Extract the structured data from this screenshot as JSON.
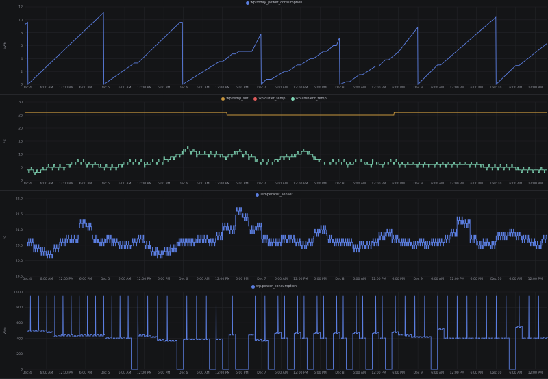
{
  "x_ticks": [
    {
      "h": 0,
      "label": "Dec 4"
    },
    {
      "h": 6,
      "label": "6:00 AM"
    },
    {
      "h": 12,
      "label": "12:00 PM"
    },
    {
      "h": 18,
      "label": "6:00 PM"
    },
    {
      "h": 24,
      "label": "Dec 5"
    },
    {
      "h": 30,
      "label": "6:00 AM"
    },
    {
      "h": 36,
      "label": "12:00 PM"
    },
    {
      "h": 42,
      "label": "6:00 PM"
    },
    {
      "h": 48,
      "label": "Dec 6"
    },
    {
      "h": 54,
      "label": "6:00 AM"
    },
    {
      "h": 60,
      "label": "12:00 PM"
    },
    {
      "h": 66,
      "label": "6:00 PM"
    },
    {
      "h": 72,
      "label": "Dec 7"
    },
    {
      "h": 78,
      "label": "6:00 AM"
    },
    {
      "h": 84,
      "label": "12:00 PM"
    },
    {
      "h": 90,
      "label": "6:00 PM"
    },
    {
      "h": 96,
      "label": "Dec 8"
    },
    {
      "h": 102,
      "label": "6:00 AM"
    },
    {
      "h": 108,
      "label": "12:00 PM"
    },
    {
      "h": 114,
      "label": "6:00 PM"
    },
    {
      "h": 120,
      "label": "Dec 9"
    },
    {
      "h": 126,
      "label": "6:00 AM"
    },
    {
      "h": 132,
      "label": "12:00 PM"
    },
    {
      "h": 138,
      "label": "6:00 PM"
    },
    {
      "h": 144,
      "label": "Dec 10"
    },
    {
      "h": 150,
      "label": "6:00 AM"
    },
    {
      "h": 156,
      "label": "12:00 PM"
    }
  ],
  "chart_data": [
    {
      "type": "line",
      "title": "",
      "ylabel": "kWh",
      "xlim": [
        -0.5,
        159.5
      ],
      "ylim": [
        0,
        12
      ],
      "yticks": [
        {
          "v": 0,
          "label": "0"
        },
        {
          "v": 2,
          "label": "2"
        },
        {
          "v": 4,
          "label": "4"
        },
        {
          "v": 6,
          "label": "6"
        },
        {
          "v": 8,
          "label": "8"
        },
        {
          "v": 10,
          "label": "10"
        },
        {
          "v": 12,
          "label": "12"
        }
      ],
      "series": [
        {
          "name": "wp.today_power_consumption",
          "color": "#5b7ee0",
          "style": "line",
          "points": [
            [
              -0.5,
              9.3
            ],
            [
              0.2,
              9.6
            ],
            [
              0.3,
              0
            ],
            [
              23.5,
              11.1
            ],
            [
              23.6,
              0
            ],
            [
              33,
              3.3
            ],
            [
              34,
              3.3
            ],
            [
              47,
              9.6
            ],
            [
              47.7,
              9.6
            ],
            [
              47.8,
              0
            ],
            [
              59,
              3.5
            ],
            [
              60,
              3.5
            ],
            [
              63,
              4.7
            ],
            [
              64,
              4.7
            ],
            [
              65,
              5.1
            ],
            [
              69,
              5.1
            ],
            [
              71.8,
              7.8
            ],
            [
              71.9,
              0
            ],
            [
              73.5,
              0.8
            ],
            [
              75,
              0.8
            ],
            [
              79,
              2.0
            ],
            [
              80,
              2.0
            ],
            [
              83,
              3.0
            ],
            [
              84,
              3.0
            ],
            [
              87,
              4.0
            ],
            [
              88,
              4.0
            ],
            [
              91,
              5.1
            ],
            [
              92,
              5.1
            ],
            [
              94,
              6.0
            ],
            [
              95,
              6.0
            ],
            [
              95.9,
              7.2
            ],
            [
              96,
              0
            ],
            [
              98,
              0.4
            ],
            [
              99,
              0.4
            ],
            [
              102,
              1.5
            ],
            [
              103,
              1.5
            ],
            [
              107,
              2.8
            ],
            [
              108,
              2.8
            ],
            [
              110,
              3.8
            ],
            [
              111,
              3.8
            ],
            [
              114,
              5.0
            ],
            [
              119.9,
              8.8
            ],
            [
              120,
              0
            ],
            [
              126,
              3.0
            ],
            [
              127,
              3.0
            ],
            [
              143.9,
              10.4
            ],
            [
              144,
              0
            ],
            [
              150,
              2.9
            ],
            [
              151,
              2.9
            ],
            [
              159.5,
              6.3
            ]
          ]
        }
      ]
    },
    {
      "type": "line",
      "ylabel": "°C",
      "xlim": [
        -0.5,
        159.5
      ],
      "ylim": [
        0,
        30
      ],
      "yticks": [
        {
          "v": 0,
          "label": "0"
        },
        {
          "v": 5,
          "label": "5"
        },
        {
          "v": 10,
          "label": "10"
        },
        {
          "v": 15,
          "label": "15"
        },
        {
          "v": 20,
          "label": "20"
        },
        {
          "v": 25,
          "label": "25"
        },
        {
          "v": 30,
          "label": "30"
        }
      ],
      "series": [
        {
          "name": "wp.temp_set",
          "color": "#c8963e",
          "style": "line",
          "points": [
            [
              -0.5,
              26
            ],
            [
              61.3,
              26
            ],
            [
              61.4,
              25
            ],
            [
              112.6,
              25
            ],
            [
              112.7,
              26
            ],
            [
              159.5,
              26
            ]
          ]
        },
        {
          "name": "wp.outlet_temp",
          "color": "#e05a5a",
          "style": "hidden",
          "points": []
        },
        {
          "name": "wp.ambient_temp",
          "color": "#7fd6b5",
          "style": "step2h",
          "values": [
            4,
            3,
            4,
            5,
            5,
            5,
            6,
            7,
            7,
            6,
            6,
            5,
            5,
            5,
            6,
            7,
            7,
            7,
            6,
            7,
            7,
            8,
            9,
            10,
            12,
            11,
            10,
            10,
            10,
            10,
            9,
            10,
            11,
            10,
            9,
            7,
            7,
            7,
            8,
            9,
            9,
            10,
            11,
            10,
            8,
            7,
            7,
            7,
            7,
            6,
            7,
            7,
            6,
            7,
            6,
            7,
            7,
            6,
            6,
            6,
            6,
            6,
            6,
            6,
            6,
            6,
            6,
            6,
            6,
            6,
            5,
            5,
            5,
            5,
            5,
            4,
            4,
            4,
            4,
            4
          ]
        }
      ]
    },
    {
      "type": "line",
      "ylabel": "°C",
      "xlim": [
        -0.5,
        159.5
      ],
      "ylim": [
        19.5,
        22.0
      ],
      "yticks": [
        {
          "v": 19.5,
          "label": "19.5"
        },
        {
          "v": 20.0,
          "label": "20.0"
        },
        {
          "v": 20.5,
          "label": "20.5"
        },
        {
          "v": 21.0,
          "label": "21.0"
        },
        {
          "v": 21.5,
          "label": "21.5"
        },
        {
          "v": 22.0,
          "label": "22.0"
        }
      ],
      "series": [
        {
          "name": "Temperatur_sensor",
          "color": "#5b7ee0",
          "style": "jitter2h",
          "jitter": 0.12,
          "values": [
            20.6,
            20.4,
            20.3,
            20.2,
            20.4,
            20.6,
            20.7,
            20.7,
            21.2,
            21.1,
            20.7,
            20.6,
            20.7,
            20.6,
            20.5,
            20.5,
            20.6,
            20.7,
            20.5,
            20.3,
            20.2,
            20.3,
            20.4,
            20.6,
            20.6,
            20.6,
            20.7,
            20.7,
            20.6,
            20.8,
            21.1,
            21.0,
            21.6,
            21.4,
            21.0,
            21.1,
            20.7,
            20.6,
            20.6,
            20.7,
            20.7,
            20.6,
            20.5,
            20.6,
            20.9,
            21.0,
            20.7,
            20.6,
            20.6,
            20.6,
            20.4,
            20.5,
            20.5,
            20.6,
            20.8,
            20.9,
            20.7,
            20.6,
            20.6,
            20.5,
            20.6,
            20.5,
            20.6,
            20.6,
            20.7,
            20.9,
            21.3,
            21.2,
            20.7,
            20.5,
            20.6,
            20.5,
            20.8,
            20.8,
            20.9,
            20.8,
            20.7,
            20.6,
            20.5,
            20.7
          ]
        }
      ]
    },
    {
      "type": "line",
      "ylabel": "Watt",
      "xlim": [
        -0.5,
        159.5
      ],
      "ylim": [
        0,
        1000
      ],
      "yticks": [
        {
          "v": 0,
          "label": "0"
        },
        {
          "v": 200,
          "label": "200"
        },
        {
          "v": 400,
          "label": "400"
        },
        {
          "v": 600,
          "label": "600"
        },
        {
          "v": 800,
          "label": "800"
        },
        {
          "v": 1000,
          "label": "1,000"
        }
      ],
      "series": [
        {
          "name": "wp.power_consumption",
          "color": "#5b7ee0",
          "style": "power",
          "baseline": [
            500,
            500,
            500,
            480,
            430,
            440,
            440,
            430,
            440,
            440,
            440,
            440,
            410,
            400,
            410,
            400,
            0,
            440,
            430,
            420,
            380,
            370,
            370,
            0,
            390,
            390,
            390,
            390,
            0,
            390,
            0,
            450,
            0,
            0,
            450,
            380,
            370,
            0,
            470,
            400,
            0,
            470,
            400,
            0,
            470,
            400,
            0,
            470,
            400,
            0,
            470,
            400,
            0,
            470,
            400,
            0,
            480,
            450,
            440,
            420,
            420,
            420,
            0,
            520,
            400,
            400,
            400,
            400,
            400,
            400,
            400,
            400,
            400,
            400,
            0,
            550,
            400,
            400,
            400,
            410
          ],
          "spike_value": 950,
          "spikes": [
            1,
            3.5,
            6,
            8.5,
            11,
            13.5,
            16,
            18.5,
            21,
            23.5,
            26,
            28.5,
            31,
            34,
            37,
            40,
            43,
            46.5,
            49,
            52,
            55,
            58,
            61,
            63,
            67,
            70,
            73,
            77,
            79,
            83,
            85,
            89,
            91,
            95,
            97,
            101,
            103,
            107,
            109,
            113,
            116,
            119,
            122,
            126,
            129,
            132,
            135,
            138,
            141,
            144,
            147,
            151,
            154,
            157
          ]
        }
      ]
    }
  ]
}
